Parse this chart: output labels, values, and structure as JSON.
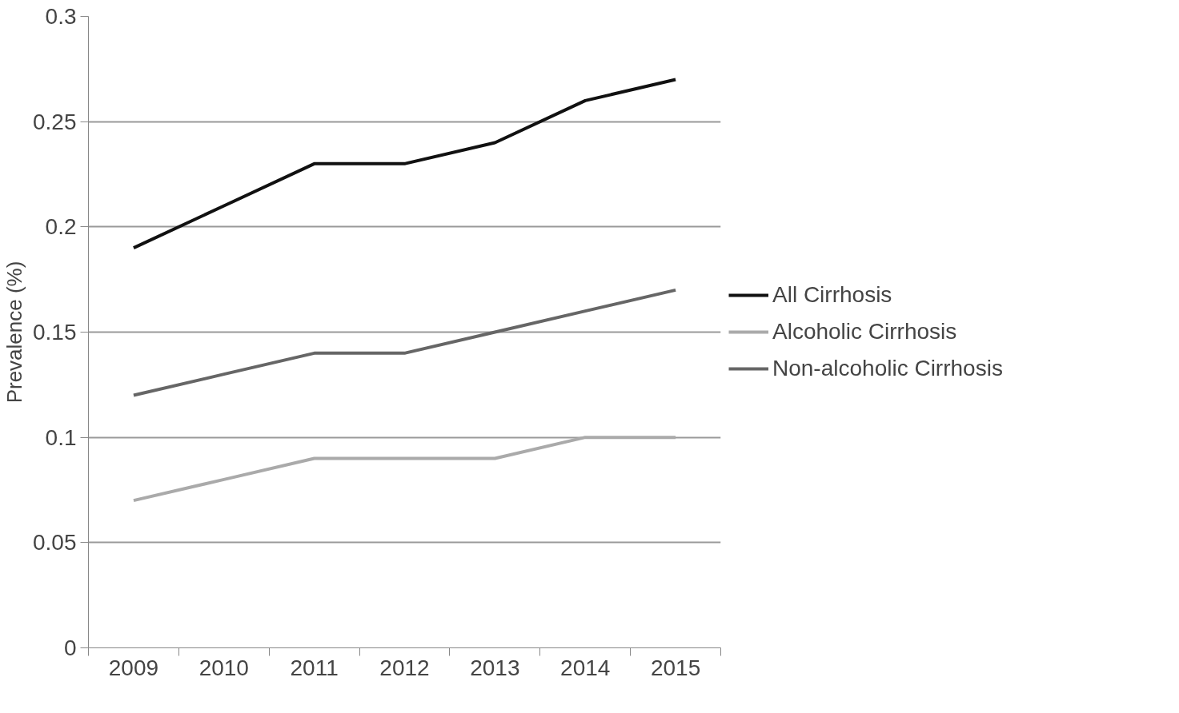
{
  "chart_data": {
    "type": "line",
    "ylabel": "Prevalence (%)",
    "categories": [
      "2009",
      "2010",
      "2011",
      "2012",
      "2013",
      "2014",
      "2015"
    ],
    "series": [
      {
        "name": "All Cirrhosis",
        "color": "#111111",
        "values": [
          0.19,
          0.21,
          0.23,
          0.23,
          0.24,
          0.26,
          0.27
        ]
      },
      {
        "name": "Alcoholic Cirrhosis",
        "color": "#aaaaaa",
        "values": [
          0.07,
          0.08,
          0.09,
          0.09,
          0.09,
          0.1,
          0.1
        ]
      },
      {
        "name": "Non-alcoholic Cirrhosis",
        "color": "#666666",
        "values": [
          0.12,
          0.13,
          0.14,
          0.14,
          0.15,
          0.16,
          0.17
        ]
      }
    ],
    "ylim": [
      0,
      0.3
    ],
    "yticks": [
      0,
      0.05,
      0.1,
      0.15,
      0.2,
      0.25,
      0.3
    ],
    "grid": "y",
    "legend": "right",
    "marker": "none",
    "line_style": "solid"
  }
}
